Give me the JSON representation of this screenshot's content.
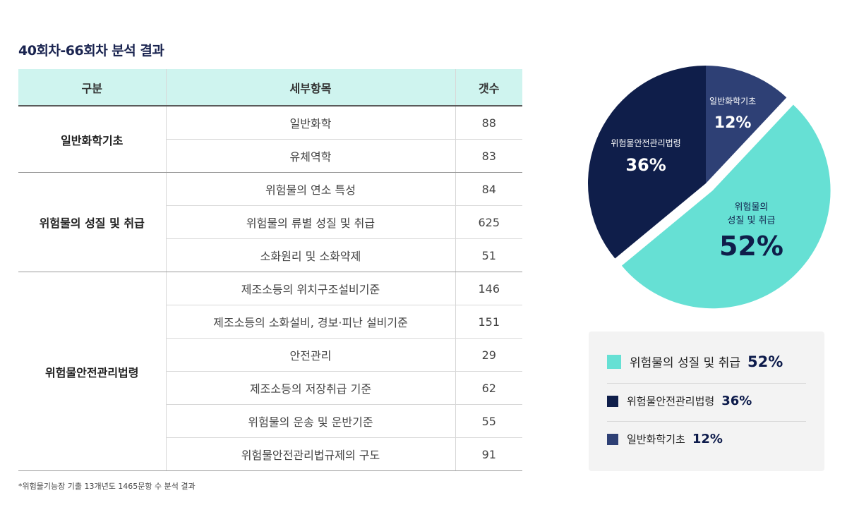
{
  "title": "40회차-66회차 분석 결과",
  "table": {
    "headers": [
      "구분",
      "세부항목",
      "갯수"
    ],
    "groups": [
      {
        "category": "일반화학기초",
        "items": [
          {
            "name": "일반화학",
            "count": "88"
          },
          {
            "name": "유체역학",
            "count": "83"
          }
        ]
      },
      {
        "category": "위험물의 성질 및 취급",
        "items": [
          {
            "name": "위험물의 연소 특성",
            "count": "84"
          },
          {
            "name": "위험물의 류별 성질 및 취급",
            "count": "625"
          },
          {
            "name": "소화원리 및 소화약제",
            "count": "51"
          }
        ]
      },
      {
        "category": "위험물안전관리법령",
        "items": [
          {
            "name": "제조소등의 위치구조설비기준",
            "count": "146"
          },
          {
            "name": "제조소등의 소화설비, 경보·피난 설비기준",
            "count": "151"
          },
          {
            "name": "안전관리",
            "count": "29"
          },
          {
            "name": "제조소등의 저장취급 기준",
            "count": "62"
          },
          {
            "name": "위험물의 운송 및 운반기준",
            "count": "55"
          },
          {
            "name": "위험물안전관리법규제의 구도",
            "count": "91"
          }
        ]
      }
    ]
  },
  "note": "*위험물기능장 기출 13개년도 1465문항 수 분석 결과",
  "chart_data": {
    "type": "pie",
    "slices": [
      {
        "label": "일반화학기초",
        "value": 12,
        "display": "12%",
        "color": "#2e4075"
      },
      {
        "label": "위험물의 성질 및 취급",
        "label_lines": [
          "위험물의",
          "성질 및 취급"
        ],
        "value": 52,
        "display": "52%",
        "color": "#66e0d4"
      },
      {
        "label": "위험물안전관리법령",
        "value": 36,
        "display": "36%",
        "color": "#0f1e4a"
      }
    ],
    "legend": [
      {
        "label": "위험물의 성질 및 취급",
        "value": "52%",
        "color": "#66e0d4"
      },
      {
        "label": "위험물안전관리법령",
        "value": "36%",
        "color": "#0f1e4a"
      },
      {
        "label": "일반화학기초",
        "value": "12%",
        "color": "#2e4075"
      }
    ]
  }
}
